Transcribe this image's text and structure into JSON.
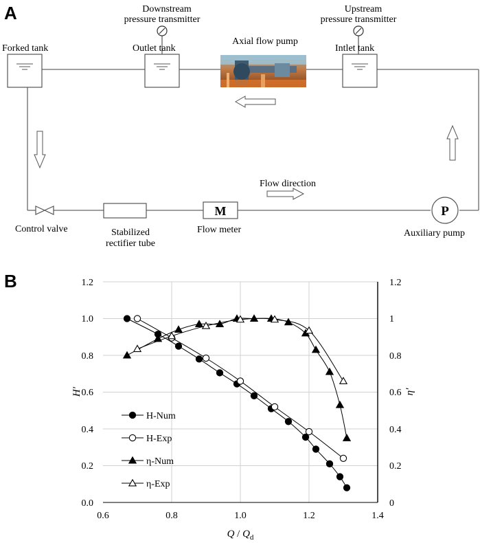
{
  "panel_a": {
    "panel_label": "A",
    "forked_tank": "Forked tank",
    "downstream_pt_line1": "Downstream",
    "downstream_pt_line2": "pressure transmitter",
    "outlet_tank": "Outlet tank",
    "axial_flow_pump": "Axial flow pump",
    "upstream_pt_line1": "Upstream",
    "upstream_pt_line2": "pressure transmitter",
    "inlet_tank": "Intlet tank",
    "flow_direction": "Flow direction",
    "control_valve": "Control valve",
    "stabilized_line1": "Stabilized",
    "stabilized_line2": "rectifier tube",
    "flow_meter": "Flow meter",
    "flow_meter_symbol": "M",
    "auxiliary_pump": "Auxiliary pump",
    "auxiliary_pump_symbol": "P",
    "colors": {
      "line": "#555555",
      "pump_photo": "#a0522d"
    }
  },
  "panel_b": {
    "panel_label": "B",
    "y_left_label": "H′",
    "y_right_label": "η′",
    "x_label_main": "Q",
    "x_label_sep": " / ",
    "x_label_Q": "Q",
    "x_label_sub": "d",
    "x_ticks": [
      "0.6",
      "0.8",
      "1.0",
      "1.2",
      "1.4"
    ],
    "y_left_ticks": [
      "0.0",
      "0.2",
      "0.4",
      "0.6",
      "0.8",
      "1.0",
      "1.2"
    ],
    "y_right_ticks": [
      "0",
      "0.2",
      "0.4",
      "0.6",
      "0.8",
      "1",
      "1.2"
    ]
  },
  "chart_data": {
    "type": "line",
    "xlabel": "Q / Qd",
    "ylabel": "H′",
    "y2label": "η′",
    "xlim": [
      0.6,
      1.4
    ],
    "ylim": [
      0.0,
      1.2
    ],
    "y2lim": [
      0,
      1.2
    ],
    "grid": true,
    "legend_position": "bottom-left",
    "series": [
      {
        "name": "H-Num",
        "marker": "filled-circle",
        "axis": "left",
        "x": [
          0.67,
          0.76,
          0.82,
          0.88,
          0.94,
          0.99,
          1.04,
          1.09,
          1.14,
          1.19,
          1.22,
          1.26,
          1.29,
          1.31
        ],
        "y": [
          1.0,
          0.915,
          0.85,
          0.78,
          0.705,
          0.645,
          0.58,
          0.51,
          0.44,
          0.355,
          0.29,
          0.21,
          0.14,
          0.08
        ]
      },
      {
        "name": "H-Exp",
        "marker": "open-circle",
        "axis": "left",
        "x": [
          0.7,
          0.8,
          0.9,
          1.0,
          1.1,
          1.2,
          1.3
        ],
        "y": [
          1.0,
          0.895,
          0.785,
          0.66,
          0.52,
          0.385,
          0.24
        ]
      },
      {
        "name": "η-Num",
        "marker": "filled-triangle",
        "axis": "right",
        "x": [
          0.67,
          0.76,
          0.82,
          0.88,
          0.94,
          0.99,
          1.04,
          1.09,
          1.14,
          1.19,
          1.22,
          1.26,
          1.29,
          1.31
        ],
        "y": [
          0.8,
          0.89,
          0.94,
          0.97,
          0.97,
          1.0,
          1.0,
          1.0,
          0.98,
          0.92,
          0.83,
          0.71,
          0.53,
          0.35
        ]
      },
      {
        "name": "η-Exp",
        "marker": "open-triangle",
        "axis": "right",
        "x": [
          0.7,
          0.8,
          0.9,
          1.0,
          1.1,
          1.2,
          1.3
        ],
        "y": [
          0.835,
          0.905,
          0.96,
          0.995,
          0.995,
          0.935,
          0.66
        ]
      }
    ]
  }
}
